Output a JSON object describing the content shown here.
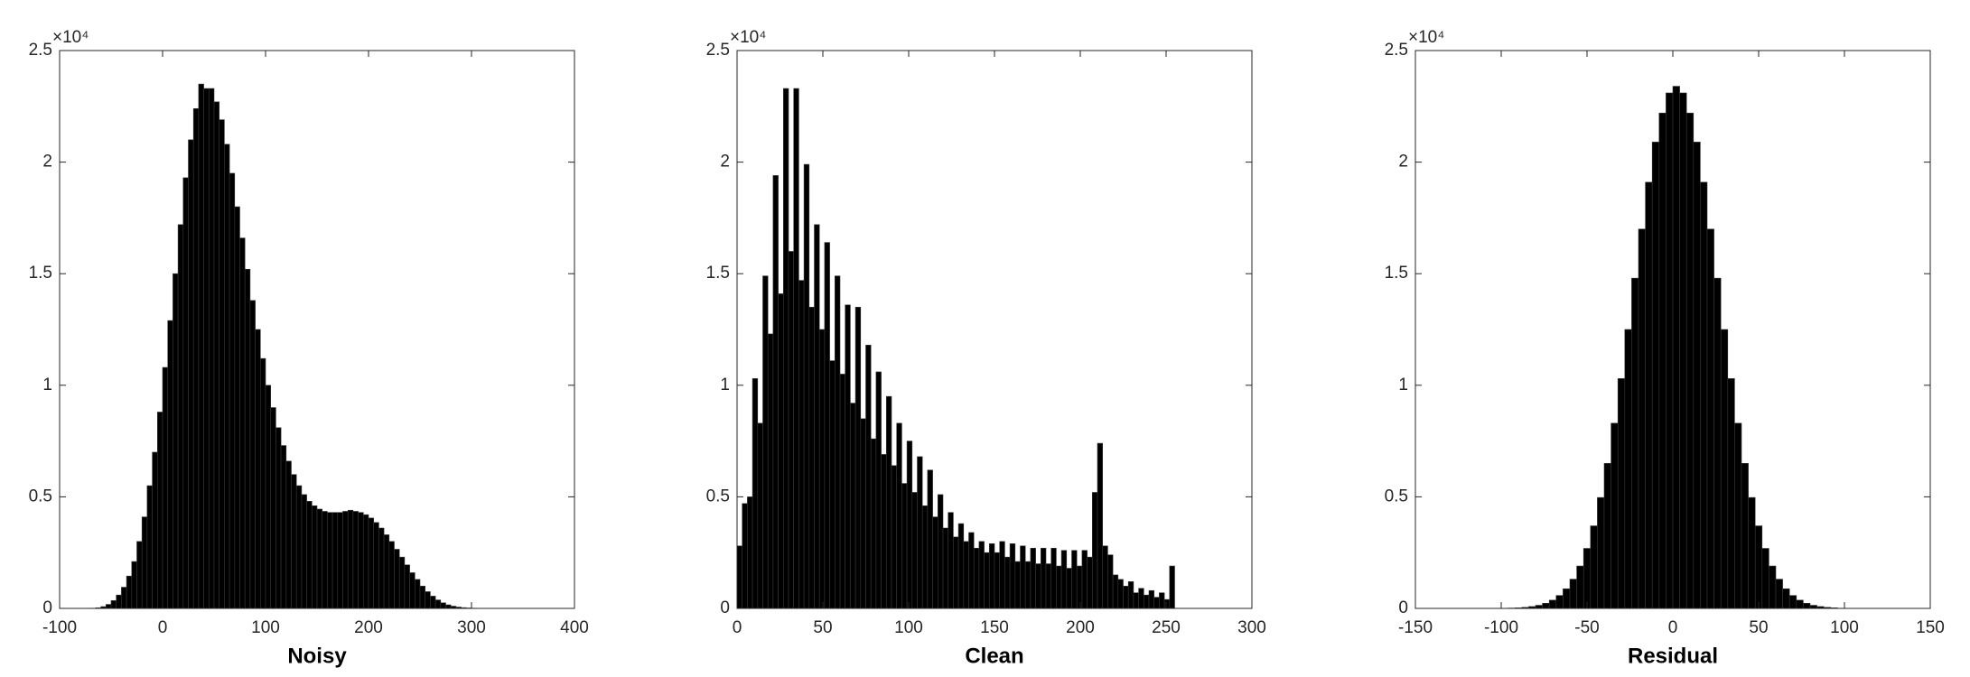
{
  "chart_data": [
    {
      "type": "histogram",
      "xlabel": "Noisy",
      "y_exponent_label": "×10⁴",
      "color": "#000000",
      "xlim": [
        -100,
        400
      ],
      "xticks": [
        -100,
        0,
        100,
        200,
        300,
        400
      ],
      "ylim": [
        0,
        25000
      ],
      "yticks": [
        0,
        {
          "value": 5000,
          "label": "0.5"
        },
        {
          "value": 10000,
          "label": "1"
        },
        {
          "value": 15000,
          "label": "1.5"
        },
        {
          "value": 20000,
          "label": "2"
        },
        {
          "value": 25000,
          "label": "2.5"
        }
      ],
      "bins": [
        -70,
        -65,
        -60,
        -55,
        -50,
        -45,
        -40,
        -35,
        -30,
        -25,
        -20,
        -15,
        -10,
        -5,
        0,
        5,
        10,
        15,
        20,
        25,
        30,
        35,
        40,
        45,
        50,
        55,
        60,
        65,
        70,
        75,
        80,
        85,
        90,
        95,
        100,
        105,
        110,
        115,
        120,
        125,
        130,
        135,
        140,
        145,
        150,
        155,
        160,
        165,
        170,
        175,
        180,
        185,
        190,
        195,
        200,
        205,
        210,
        215,
        220,
        225,
        230,
        235,
        240,
        245,
        250,
        255,
        260,
        265,
        270,
        275,
        280,
        285,
        290,
        295,
        300,
        305
      ],
      "values": [
        10,
        30,
        80,
        180,
        350,
        600,
        950,
        1450,
        2100,
        3000,
        4100,
        5500,
        7000,
        8800,
        10800,
        12900,
        15000,
        17200,
        19300,
        21000,
        22400,
        23500,
        23300,
        23300,
        22700,
        21900,
        20800,
        19500,
        18000,
        16600,
        15200,
        13800,
        12500,
        11200,
        10000,
        9000,
        8100,
        7300,
        6600,
        6000,
        5500,
        5100,
        4800,
        4600,
        4450,
        4350,
        4300,
        4300,
        4300,
        4350,
        4400,
        4350,
        4300,
        4200,
        4050,
        3850,
        3600,
        3300,
        3000,
        2650,
        2300,
        1950,
        1600,
        1300,
        1000,
        750,
        550,
        380,
        250,
        160,
        100,
        60,
        35,
        20,
        10
      ]
    },
    {
      "type": "histogram",
      "xlabel": "Clean",
      "y_exponent_label": "×10⁴",
      "color": "#000000",
      "xlim": [
        0,
        300
      ],
      "xticks": [
        0,
        50,
        100,
        150,
        200,
        250,
        300
      ],
      "ylim": [
        0,
        25000
      ],
      "yticks": [
        0,
        {
          "value": 5000,
          "label": "0.5"
        },
        {
          "value": 10000,
          "label": "1"
        },
        {
          "value": 15000,
          "label": "1.5"
        },
        {
          "value": 20000,
          "label": "2"
        },
        {
          "value": 25000,
          "label": "2.5"
        }
      ],
      "bins": [
        0,
        3,
        6,
        9,
        12,
        15,
        18,
        21,
        24,
        27,
        30,
        33,
        36,
        39,
        42,
        45,
        48,
        51,
        54,
        57,
        60,
        63,
        66,
        69,
        72,
        75,
        78,
        81,
        84,
        87,
        90,
        93,
        96,
        99,
        102,
        105,
        108,
        111,
        114,
        117,
        120,
        123,
        126,
        129,
        132,
        135,
        138,
        141,
        144,
        147,
        150,
        153,
        156,
        159,
        162,
        165,
        168,
        171,
        174,
        177,
        180,
        183,
        186,
        189,
        192,
        195,
        198,
        201,
        204,
        207,
        210,
        213,
        216,
        219,
        222,
        225,
        228,
        231,
        234,
        237,
        240,
        243,
        246,
        249,
        252,
        255
      ],
      "values": [
        2800,
        4700,
        5000,
        10300,
        8300,
        14900,
        12300,
        19400,
        14100,
        23300,
        16000,
        23300,
        14700,
        19900,
        13500,
        17200,
        12500,
        16400,
        11100,
        14900,
        10500,
        13600,
        9200,
        13500,
        8500,
        11800,
        7600,
        10600,
        6900,
        9500,
        6400,
        8300,
        5600,
        7500,
        5200,
        6800,
        4600,
        6200,
        4100,
        5100,
        3600,
        4300,
        3200,
        3800,
        3000,
        3400,
        2700,
        3000,
        2500,
        2900,
        2500,
        3000,
        2300,
        2900,
        2100,
        2800,
        2100,
        2700,
        2000,
        2700,
        2000,
        2700,
        1900,
        2600,
        1800,
        2600,
        1900,
        2600,
        2300,
        5200,
        7400,
        2800,
        2400,
        1500,
        1300,
        1000,
        1200,
        700,
        900,
        600,
        800,
        500,
        700,
        400,
        1900
      ]
    },
    {
      "type": "histogram",
      "xlabel": "Residual",
      "y_exponent_label": "×10⁴",
      "color": "#000000",
      "xlim": [
        -150,
        150
      ],
      "xticks": [
        -150,
        -100,
        -50,
        0,
        50,
        100,
        150
      ],
      "ylim": [
        0,
        25000
      ],
      "yticks": [
        0,
        {
          "value": 5000,
          "label": "0.5"
        },
        {
          "value": 10000,
          "label": "1"
        },
        {
          "value": 15000,
          "label": "1.5"
        },
        {
          "value": 20000,
          "label": "2"
        },
        {
          "value": 25000,
          "label": "2.5"
        }
      ],
      "bins": [
        -96,
        -92,
        -88,
        -84,
        -80,
        -76,
        -72,
        -68,
        -64,
        -60,
        -56,
        -52,
        -48,
        -44,
        -40,
        -36,
        -32,
        -28,
        -24,
        -20,
        -16,
        -12,
        -8,
        -4,
        0,
        4,
        8,
        12,
        16,
        20,
        24,
        28,
        32,
        36,
        40,
        44,
        48,
        52,
        56,
        60,
        64,
        68,
        72,
        76,
        80,
        84,
        88,
        92,
        96
      ],
      "values": [
        15,
        27,
        48,
        83,
        140,
        230,
        370,
        580,
        880,
        1310,
        1900,
        2690,
        3700,
        4970,
        6500,
        8300,
        10300,
        12500,
        14800,
        17000,
        19100,
        20900,
        22200,
        23100,
        23400,
        23100,
        22200,
        20900,
        19100,
        17000,
        14800,
        12500,
        10300,
        8300,
        6500,
        4970,
        3700,
        2690,
        1900,
        1310,
        880,
        580,
        370,
        230,
        140,
        83,
        48,
        27
      ]
    }
  ]
}
